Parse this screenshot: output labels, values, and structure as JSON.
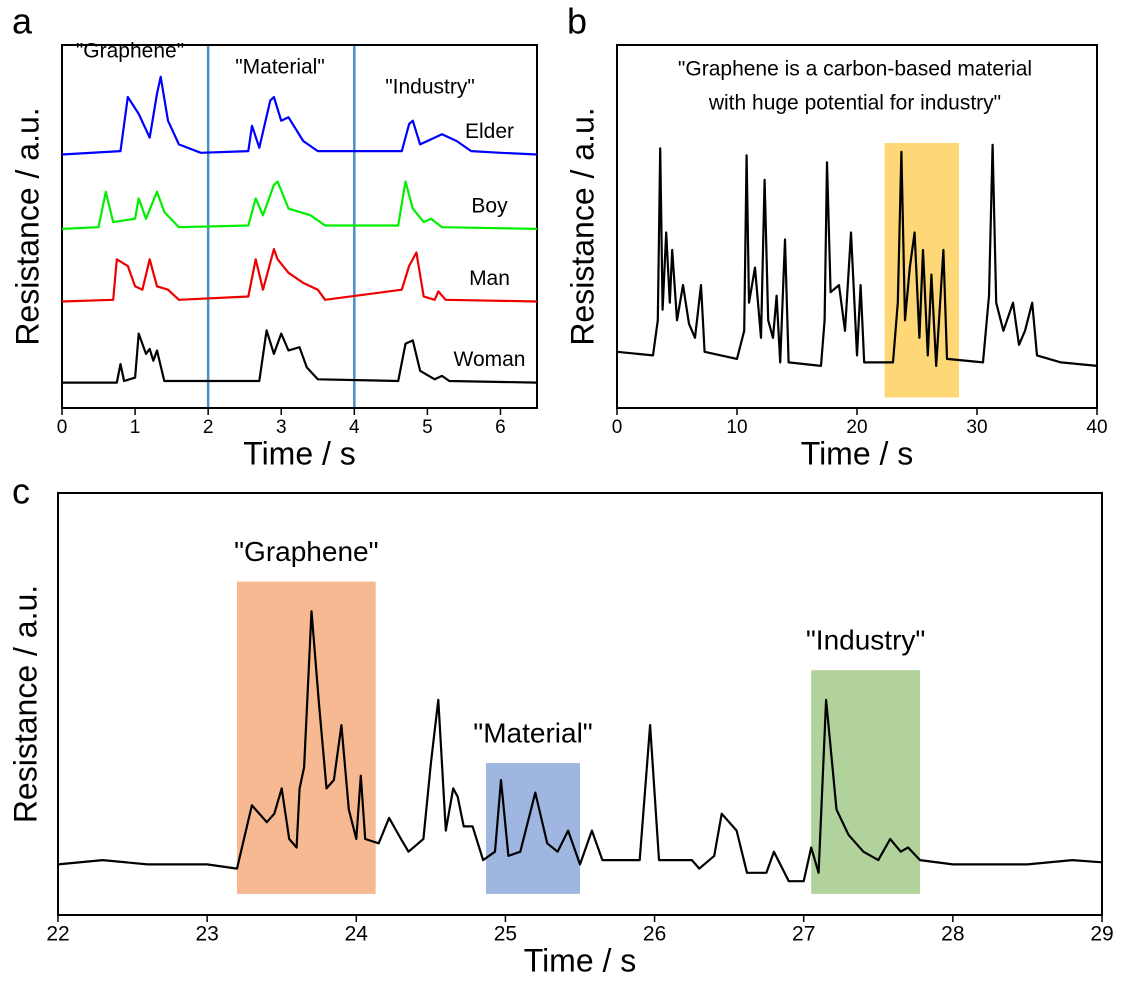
{
  "chart_data": [
    {
      "type": "line",
      "panel": "a",
      "xlabel": "Time / s",
      "ylabel": "Resistance / a.u.",
      "xlim": [
        0,
        6.5
      ],
      "xticks": [
        0,
        1,
        2,
        3,
        4,
        5,
        6
      ],
      "ylim": [
        0,
        10
      ],
      "vlines": [
        2,
        4
      ],
      "vline_color": "#4a90c8",
      "annotations": [
        "\"Graphene\"",
        "\"Material\"",
        "\"Industry\""
      ],
      "series": [
        {
          "name": "Elder",
          "color": "#0000ff",
          "x": [
            0,
            0.8,
            0.9,
            1.05,
            1.2,
            1.3,
            1.35,
            1.45,
            1.6,
            1.9,
            2.55,
            2.6,
            2.7,
            2.85,
            2.9,
            3.0,
            3.1,
            3.3,
            3.5,
            4.65,
            4.75,
            4.8,
            4.9,
            5.1,
            5.2,
            5.4,
            5.6,
            6.0,
            6.5
          ],
          "values": [
            7.5,
            7.6,
            9.2,
            8.7,
            8.0,
            9.3,
            9.8,
            8.5,
            7.8,
            7.55,
            7.6,
            8.35,
            7.7,
            9.1,
            9.2,
            8.5,
            8.6,
            7.9,
            7.6,
            7.6,
            8.4,
            8.5,
            7.8,
            8.0,
            8.1,
            7.9,
            7.6,
            7.55,
            7.5
          ]
        },
        {
          "name": "Boy",
          "color": "#00ee00",
          "x": [
            0,
            0.5,
            0.6,
            0.7,
            1.0,
            1.05,
            1.15,
            1.3,
            1.4,
            1.6,
            2.55,
            2.65,
            2.75,
            2.9,
            2.95,
            3.1,
            3.4,
            3.6,
            4.6,
            4.7,
            4.8,
            4.95,
            5.05,
            5.2,
            6.5
          ],
          "values": [
            5.3,
            5.35,
            6.4,
            5.5,
            5.6,
            6.2,
            5.6,
            6.4,
            5.8,
            5.35,
            5.4,
            6.2,
            5.7,
            6.6,
            6.7,
            5.9,
            5.7,
            5.4,
            5.4,
            6.7,
            5.9,
            5.5,
            5.6,
            5.35,
            5.3
          ]
        },
        {
          "name": "Man",
          "color": "#ee0000",
          "x": [
            0,
            0.7,
            0.75,
            0.9,
            1.0,
            1.1,
            1.2,
            1.3,
            1.45,
            1.6,
            2.55,
            2.65,
            2.75,
            2.9,
            2.95,
            3.1,
            3.3,
            3.5,
            3.6,
            4.65,
            4.75,
            4.85,
            4.95,
            5.1,
            5.15,
            5.25,
            6.5
          ],
          "values": [
            3.15,
            3.2,
            4.4,
            4.2,
            3.6,
            3.5,
            4.4,
            3.6,
            3.5,
            3.2,
            3.3,
            4.4,
            3.5,
            4.7,
            4.4,
            4.0,
            3.7,
            3.5,
            3.2,
            3.5,
            4.2,
            4.6,
            3.3,
            3.2,
            3.45,
            3.2,
            3.15
          ]
        },
        {
          "name": "Woman",
          "color": "#000000",
          "x": [
            0,
            0.75,
            0.8,
            0.85,
            1.0,
            1.05,
            1.15,
            1.2,
            1.25,
            1.3,
            1.4,
            2.7,
            2.8,
            2.9,
            3.0,
            3.1,
            3.25,
            3.35,
            3.5,
            4.6,
            4.7,
            4.8,
            4.9,
            5.1,
            5.2,
            5.3,
            6.5
          ],
          "values": [
            0.75,
            0.75,
            1.3,
            0.8,
            0.9,
            2.2,
            1.6,
            1.75,
            1.4,
            1.7,
            0.8,
            0.8,
            2.3,
            1.6,
            2.2,
            1.7,
            1.8,
            1.2,
            0.85,
            0.8,
            1.9,
            2.0,
            1.1,
            0.85,
            0.95,
            0.8,
            0.75
          ]
        }
      ]
    },
    {
      "type": "line",
      "panel": "b",
      "xlabel": "Time / s",
      "ylabel": "Resistance / a.u.",
      "xlim": [
        0,
        40
      ],
      "xticks": [
        0,
        10,
        20,
        30,
        40
      ],
      "ylim": [
        0,
        10
      ],
      "color": "#000000",
      "annotation": [
        "\"Graphene is a carbon-based material",
        "with huge potential for industry\""
      ],
      "highlights": [
        {
          "x": [
            22.3,
            28.5
          ],
          "y": [
            0.3,
            7.55
          ],
          "color": "#fdc94a"
        }
      ],
      "x": [
        0,
        3,
        3.4,
        3.6,
        3.8,
        4.1,
        4.4,
        4.6,
        5.0,
        5.5,
        6.0,
        6.5,
        7.0,
        7.3,
        10,
        10.6,
        10.8,
        11.0,
        11.5,
        12.0,
        12.3,
        12.6,
        13.0,
        13.3,
        13.6,
        14.0,
        14.3,
        17,
        17.3,
        17.5,
        17.8,
        18.5,
        19.0,
        19.5,
        20.0,
        20.3,
        20.6,
        23,
        23.4,
        23.7,
        24.0,
        24.4,
        24.8,
        25.2,
        25.5,
        25.9,
        26.2,
        26.6,
        27.2,
        27.5,
        30.5,
        31.0,
        31.3,
        31.6,
        32.2,
        33.0,
        33.5,
        34.0,
        34.6,
        35.0,
        37,
        40
      ],
      "values": [
        1.6,
        1.5,
        2.5,
        7.4,
        2.8,
        5.0,
        3.0,
        4.5,
        2.5,
        3.5,
        2.4,
        2.0,
        3.5,
        1.6,
        1.4,
        2.2,
        7.2,
        3.0,
        4.0,
        2.0,
        6.5,
        2.5,
        2.0,
        3.2,
        1.3,
        4.8,
        1.3,
        1.2,
        2.5,
        7.0,
        3.3,
        3.5,
        2.2,
        5.0,
        1.5,
        3.5,
        1.3,
        1.3,
        3.0,
        7.3,
        2.5,
        4.0,
        5.0,
        2.0,
        4.5,
        1.5,
        3.8,
        1.2,
        4.5,
        1.4,
        1.3,
        3.2,
        7.5,
        3.0,
        2.2,
        3.0,
        1.8,
        2.2,
        3.0,
        1.5,
        1.3,
        1.2
      ]
    },
    {
      "type": "line",
      "panel": "c",
      "xlabel": "Time / s",
      "ylabel": "Resistance / a.u.",
      "xlim": [
        22,
        29
      ],
      "xticks": [
        22,
        23,
        24,
        25,
        26,
        27,
        28,
        29
      ],
      "ylim": [
        0,
        10
      ],
      "color": "#000000",
      "highlights": [
        {
          "label": "\"Graphene\"",
          "x": [
            23.2,
            24.13
          ],
          "y": [
            0.5,
            7.9
          ],
          "color": "#f4a26e"
        },
        {
          "label": "\"Material\"",
          "x": [
            24.87,
            25.5
          ],
          "y": [
            0.5,
            3.6
          ],
          "color": "#7f9fd6"
        },
        {
          "label": "\"Industry\"",
          "x": [
            27.05,
            27.78
          ],
          "y": [
            0.5,
            5.8
          ],
          "color": "#97c47a"
        }
      ],
      "x": [
        22,
        22.3,
        22.6,
        23.0,
        23.2,
        23.3,
        23.4,
        23.45,
        23.5,
        23.55,
        23.6,
        23.62,
        23.65,
        23.7,
        23.75,
        23.8,
        23.85,
        23.9,
        23.95,
        24.0,
        24.03,
        24.06,
        24.15,
        24.22,
        24.3,
        24.35,
        24.45,
        24.5,
        24.55,
        24.6,
        24.65,
        24.68,
        24.72,
        24.78,
        24.85,
        24.93,
        24.97,
        25.02,
        25.1,
        25.2,
        25.28,
        25.35,
        25.42,
        25.5,
        25.58,
        25.65,
        25.9,
        25.97,
        26.03,
        26.25,
        26.3,
        26.4,
        26.45,
        26.55,
        26.62,
        26.75,
        26.8,
        26.9,
        27.0,
        27.05,
        27.1,
        27.15,
        27.22,
        27.3,
        27.4,
        27.5,
        27.58,
        27.65,
        27.7,
        27.78,
        28.0,
        28.5,
        28.8,
        29.0
      ],
      "values": [
        1.2,
        1.3,
        1.2,
        1.2,
        1.1,
        2.6,
        2.2,
        2.4,
        3.0,
        1.8,
        1.6,
        3.0,
        3.5,
        7.2,
        5.0,
        3.0,
        3.2,
        4.5,
        2.5,
        1.8,
        3.3,
        1.8,
        1.7,
        2.3,
        1.8,
        1.5,
        1.8,
        3.6,
        5.1,
        2.0,
        3.0,
        2.8,
        2.1,
        2.1,
        1.3,
        1.5,
        3.2,
        1.4,
        1.5,
        2.9,
        1.7,
        1.5,
        2.0,
        1.2,
        2.0,
        1.3,
        1.3,
        4.5,
        1.3,
        1.3,
        1.1,
        1.4,
        2.4,
        2.0,
        1.0,
        1.0,
        1.5,
        0.8,
        0.8,
        1.6,
        1.0,
        5.1,
        2.5,
        1.9,
        1.5,
        1.3,
        1.8,
        1.5,
        1.6,
        1.3,
        1.2,
        1.2,
        1.3,
        1.25
      ]
    }
  ]
}
